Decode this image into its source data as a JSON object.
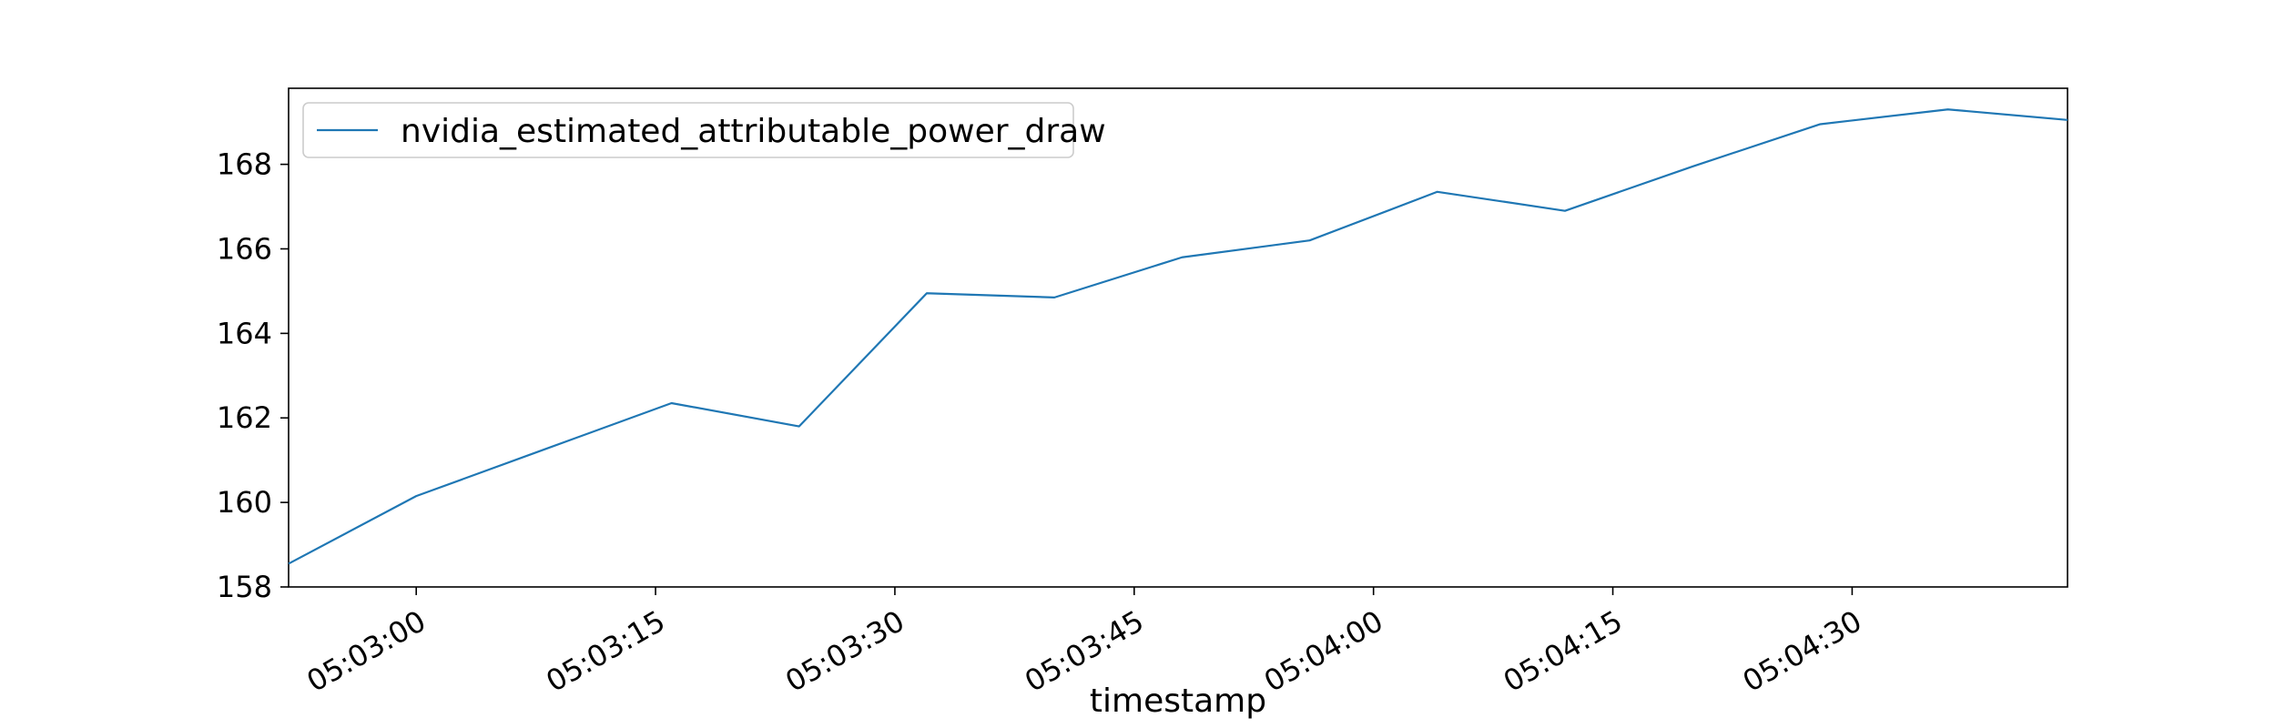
{
  "chart_data": {
    "type": "line",
    "title": "",
    "xlabel": "timestamp",
    "ylabel": "",
    "x_tick_labels": [
      "05:03:00",
      "05:03:15",
      "05:03:30",
      "05:03:45",
      "05:04:00",
      "05:04:15",
      "05:04:30"
    ],
    "x_tick_seconds": [
      0,
      15,
      30,
      45,
      60,
      75,
      90
    ],
    "xlim_seconds": [
      -8,
      103.5
    ],
    "ylim": [
      158,
      169.8
    ],
    "y_ticks": [
      158,
      160,
      162,
      164,
      166,
      168
    ],
    "grid": false,
    "legend_position": "top-left",
    "line_color": "#1f77b4",
    "series": [
      {
        "name": "nvidia_estimated_attributable_power_draw",
        "x": [
          "05:02:52",
          "05:03:00",
          "05:03:08",
          "05:03:16",
          "05:03:24",
          "05:03:32",
          "05:03:40",
          "05:03:48",
          "05:03:56",
          "05:04:04",
          "05:04:12",
          "05:04:20",
          "05:04:28",
          "05:04:36",
          "05:04:43.5"
        ],
        "y": [
          158.55,
          160.15,
          161.25,
          162.35,
          161.8,
          164.95,
          164.85,
          165.8,
          166.2,
          167.35,
          166.9,
          167.95,
          168.95,
          169.3,
          169.05
        ]
      }
    ]
  }
}
